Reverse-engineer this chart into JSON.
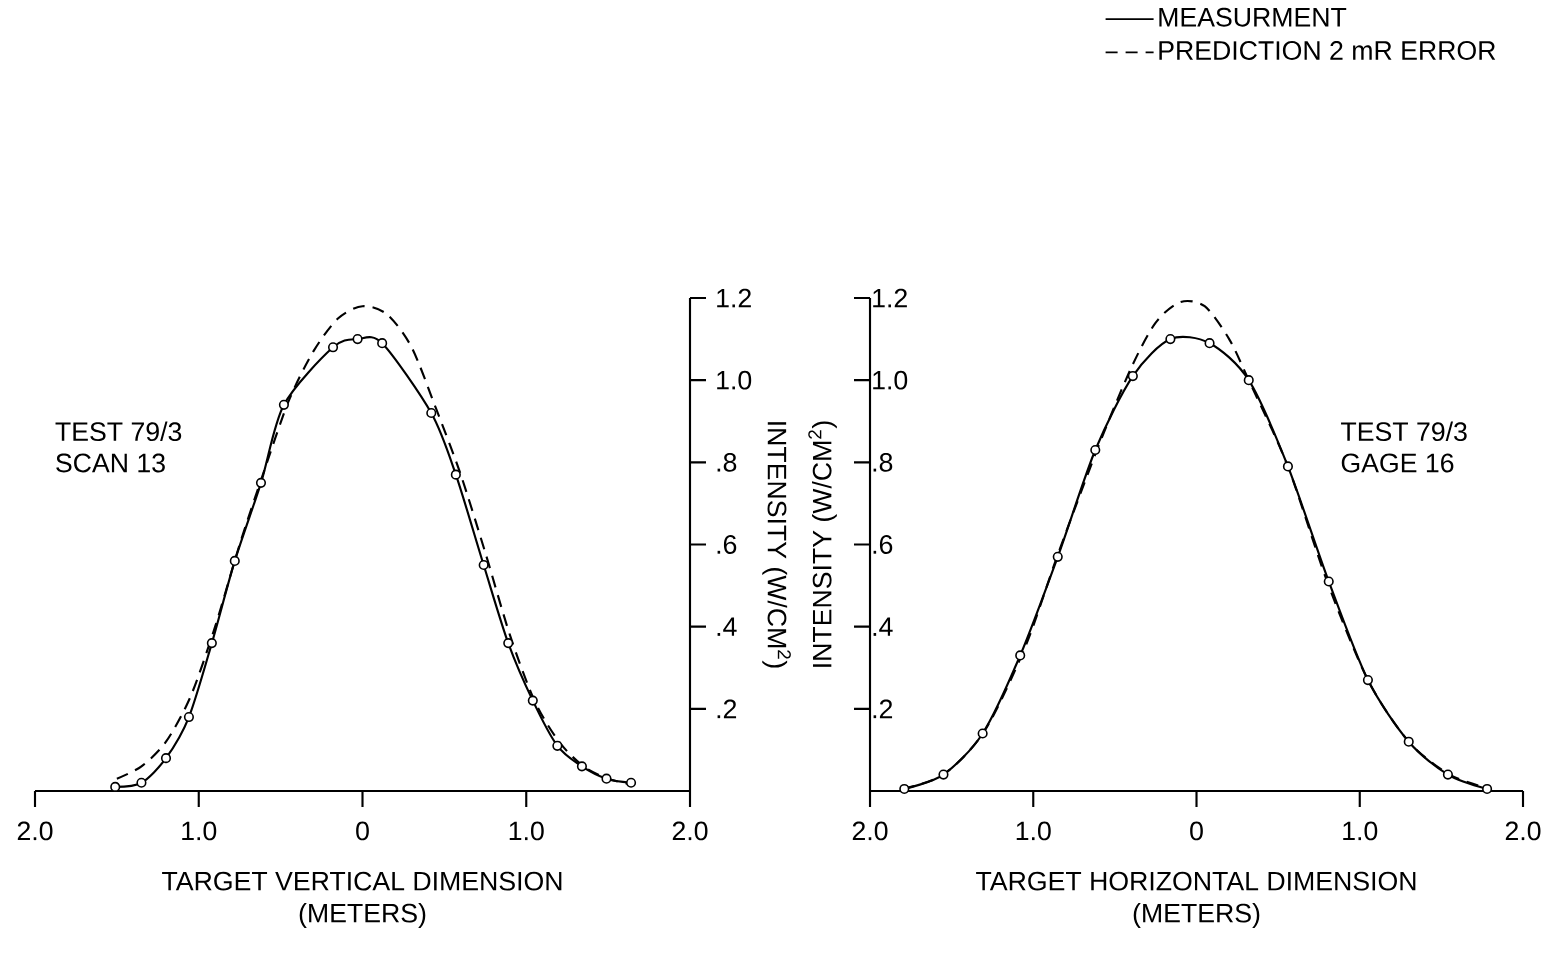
{
  "chart_data": [
    {
      "type": "line",
      "xlabel": "TARGET VERTICAL DIMENSION\n(METERS)",
      "ylabel": "INTENSITY (W/CM$^{2}$)",
      "annotations": [
        "TEST 79/3",
        "SCAN 13"
      ],
      "xlim": [
        -2,
        2
      ],
      "ylim": [
        0,
        1.2
      ],
      "xticks": [
        {
          "value": -2,
          "label": "2.0"
        },
        {
          "value": -1,
          "label": "1.0"
        },
        {
          "value": 0,
          "label": "0"
        },
        {
          "value": 1,
          "label": "1.0"
        },
        {
          "value": 2,
          "label": "2.0"
        }
      ],
      "yticks": [
        {
          "value": 0.2,
          "label": ".2"
        },
        {
          "value": 0.4,
          "label": ".4"
        },
        {
          "value": 0.6,
          "label": ".6"
        },
        {
          "value": 0.8,
          "label": ".8"
        },
        {
          "value": 1.0,
          "label": "1.0"
        },
        {
          "value": 1.2,
          "label": "1.2"
        }
      ],
      "grid": false,
      "series": [
        {
          "color": "#000000",
          "marker": "circle",
          "line_style": "solid",
          "x": [
            -1.51,
            -1.35,
            -1.2,
            -1.06,
            -0.92,
            -0.78,
            -0.62,
            -0.48,
            -0.18,
            -0.03,
            0.12,
            0.42,
            0.57,
            0.74,
            0.89,
            1.04,
            1.19,
            1.34,
            1.49,
            1.64
          ],
          "values": [
            0.01,
            0.02,
            0.08,
            0.18,
            0.36,
            0.56,
            0.75,
            0.94,
            1.08,
            1.1,
            1.09,
            0.92,
            0.77,
            0.55,
            0.36,
            0.22,
            0.11,
            0.06,
            0.03,
            0.02
          ]
        },
        {
          "color": "#000000",
          "marker": "none",
          "line_style": "dashed",
          "x": [
            -1.5,
            -1.35,
            -1.2,
            -1.05,
            -0.9,
            -0.75,
            -0.6,
            -0.45,
            -0.3,
            -0.15,
            0,
            0.15,
            0.3,
            0.45,
            0.6,
            0.75,
            0.9,
            1.05,
            1.2,
            1.35,
            1.5,
            1.65
          ],
          "values": [
            0.03,
            0.06,
            0.12,
            0.23,
            0.4,
            0.6,
            0.78,
            0.95,
            1.07,
            1.15,
            1.18,
            1.16,
            1.08,
            0.93,
            0.77,
            0.58,
            0.38,
            0.22,
            0.12,
            0.06,
            0.03,
            0.015
          ]
        }
      ]
    },
    {
      "type": "line",
      "xlabel": "TARGET HORIZONTAL DIMENSION\n(METERS)",
      "ylabel": "INTENSITY (W/CM$^{2}$)",
      "annotations": [
        "TEST 79/3",
        "GAGE 16"
      ],
      "xlim": [
        -2,
        2
      ],
      "ylim": [
        0,
        1.2
      ],
      "xticks": [
        {
          "value": -2,
          "label": "2.0"
        },
        {
          "value": -1,
          "label": "1.0"
        },
        {
          "value": 0,
          "label": "0"
        },
        {
          "value": 1,
          "label": "1.0"
        },
        {
          "value": 2,
          "label": "2.0"
        }
      ],
      "yticks": [
        {
          "value": 0.2,
          "label": ".2"
        },
        {
          "value": 0.4,
          "label": ".4"
        },
        {
          "value": 0.6,
          "label": ".6"
        },
        {
          "value": 0.8,
          "label": ".8"
        },
        {
          "value": 1.0,
          "label": "1.0"
        },
        {
          "value": 1.2,
          "label": "1.2"
        }
      ],
      "grid": false,
      "legend": "top",
      "series": [
        {
          "name": "MEASURMENT",
          "color": "#000000",
          "marker": "circle",
          "line_style": "solid",
          "x": [
            -1.79,
            -1.55,
            -1.31,
            -1.08,
            -0.85,
            -0.62,
            -0.39,
            -0.16,
            0.08,
            0.32,
            0.56,
            0.81,
            1.05,
            1.3,
            1.54,
            1.78
          ],
          "values": [
            0.005,
            0.04,
            0.14,
            0.33,
            0.57,
            0.83,
            1.01,
            1.1,
            1.09,
            1.0,
            0.79,
            0.51,
            0.27,
            0.12,
            0.04,
            0.005
          ]
        },
        {
          "name": "PREDICTION 2 mR ERROR",
          "color": "#000000",
          "marker": "none",
          "line_style": "dashed",
          "x": [
            -1.8,
            -1.55,
            -1.3,
            -1.05,
            -0.85,
            -0.6,
            -0.4,
            -0.25,
            -0.1,
            0.05,
            0.2,
            0.32,
            0.56,
            0.8,
            1.05,
            1.3,
            1.55,
            1.8
          ],
          "values": [
            0.005,
            0.04,
            0.145,
            0.35,
            0.575,
            0.84,
            1.03,
            1.14,
            1.19,
            1.18,
            1.1,
            1.0,
            0.79,
            0.51,
            0.27,
            0.12,
            0.04,
            0.005
          ]
        }
      ]
    }
  ]
}
